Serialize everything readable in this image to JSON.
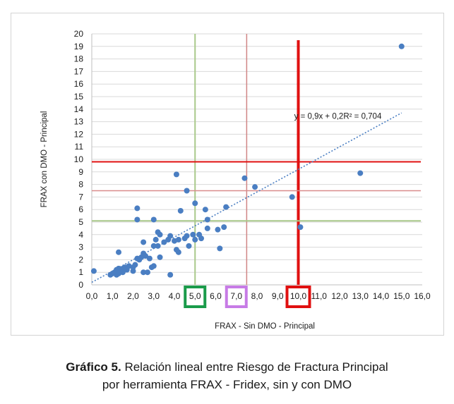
{
  "chart_data": {
    "type": "scatter",
    "xlabel": "FRAX - Sin DMO - Principal",
    "ylabel": "FRAX con DMO - Principal",
    "xlim": [
      0,
      16
    ],
    "ylim": [
      0,
      20
    ],
    "x_ticks": [
      "0,0",
      "1,0",
      "2,0",
      "3,0",
      "4,0",
      "5,0",
      "6,0",
      "7,0",
      "8,0",
      "9,0",
      "10,0",
      "11,0",
      "12,0",
      "13,0",
      "14,0",
      "15,0",
      "16,0"
    ],
    "y_ticks": [
      "0",
      "1",
      "2",
      "3",
      "4",
      "5",
      "6",
      "7",
      "8",
      "9",
      "10",
      "11",
      "12",
      "13",
      "14",
      "15",
      "16",
      "17",
      "18",
      "19",
      "20"
    ],
    "grid": "horizontal",
    "equation": "y = 0,9x + 0,2R² = 0,704",
    "trendline": {
      "slope": 0.9,
      "intercept": 0.2,
      "from": 0,
      "to": 15
    },
    "highlighted_ticks": [
      {
        "label": "5,0",
        "color": "#1a9b4a"
      },
      {
        "label": "7,0",
        "color": "#c77be6"
      },
      {
        "label": "10,0",
        "color": "#e01010"
      }
    ],
    "reference_lines": [
      {
        "axis": "x",
        "value": 5.0,
        "color": "#a9c98a",
        "width": 2
      },
      {
        "axis": "x",
        "value": 7.5,
        "color": "#d08585",
        "width": 1.5
      },
      {
        "axis": "x",
        "value": 10.0,
        "color": "#e01010",
        "width": 4
      },
      {
        "axis": "y",
        "value": 9.8,
        "color": "#e01010",
        "width": 2
      },
      {
        "axis": "y",
        "value": 7.5,
        "color": "#d98c8c",
        "width": 1.5
      },
      {
        "axis": "y",
        "value": 5.1,
        "color": "#a9c98a",
        "width": 2
      }
    ],
    "points": [
      [
        0.1,
        1.1
      ],
      [
        0.9,
        0.8
      ],
      [
        1.0,
        0.9
      ],
      [
        1.1,
        1.0
      ],
      [
        1.2,
        0.8
      ],
      [
        1.2,
        1.2
      ],
      [
        1.3,
        0.9
      ],
      [
        1.3,
        1.3
      ],
      [
        1.4,
        1.1
      ],
      [
        1.5,
        1.3
      ],
      [
        1.5,
        1.0
      ],
      [
        1.6,
        1.4
      ],
      [
        1.7,
        1.2
      ],
      [
        1.8,
        1.5
      ],
      [
        2.0,
        1.1
      ],
      [
        2.0,
        1.4
      ],
      [
        2.1,
        1.6
      ],
      [
        2.2,
        2.1
      ],
      [
        2.3,
        2.0
      ],
      [
        2.4,
        2.2
      ],
      [
        2.5,
        2.5
      ],
      [
        2.5,
        3.4
      ],
      [
        2.6,
        2.3
      ],
      [
        2.8,
        2.1
      ],
      [
        2.9,
        1.4
      ],
      [
        3.0,
        1.5
      ],
      [
        3.0,
        3.1
      ],
      [
        3.1,
        3.6
      ],
      [
        3.2,
        3.1
      ],
      [
        3.2,
        4.2
      ],
      [
        3.3,
        4.0
      ],
      [
        3.3,
        2.2
      ],
      [
        3.5,
        3.4
      ],
      [
        3.7,
        3.6
      ],
      [
        3.8,
        3.9
      ],
      [
        4.0,
        3.5
      ],
      [
        4.1,
        2.8
      ],
      [
        4.2,
        2.6
      ],
      [
        4.2,
        3.6
      ],
      [
        4.3,
        5.9
      ],
      [
        4.5,
        3.7
      ],
      [
        4.6,
        3.9
      ],
      [
        4.7,
        3.1
      ],
      [
        4.9,
        4.0
      ],
      [
        5.0,
        3.6
      ],
      [
        5.2,
        4.0
      ],
      [
        5.3,
        3.7
      ],
      [
        5.0,
        6.5
      ],
      [
        4.6,
        7.5
      ],
      [
        4.1,
        8.8
      ],
      [
        3.0,
        5.2
      ],
      [
        2.2,
        5.2
      ],
      [
        2.2,
        6.1
      ],
      [
        3.8,
        0.8
      ],
      [
        2.5,
        1.0
      ],
      [
        2.7,
        1.0
      ],
      [
        1.3,
        2.6
      ],
      [
        5.5,
        6.0
      ],
      [
        5.6,
        5.2
      ],
      [
        5.6,
        4.5
      ],
      [
        6.1,
        4.4
      ],
      [
        6.2,
        2.9
      ],
      [
        6.4,
        4.6
      ],
      [
        6.5,
        6.2
      ],
      [
        7.4,
        8.5
      ],
      [
        7.9,
        7.8
      ],
      [
        9.7,
        7.0
      ],
      [
        10.1,
        4.6
      ],
      [
        13.0,
        8.9
      ],
      [
        15.0,
        19.0
      ]
    ]
  },
  "caption": {
    "label": "Gráfico 5.",
    "line1": " Relación lineal entre Riesgo de Fractura Principal",
    "line2": "por herramienta FRAX - Fridex, sin y con DMO"
  },
  "colors": {
    "point": "#4a7ec2",
    "trend": "#4a7ec2",
    "grid": "#d9d9d9"
  }
}
